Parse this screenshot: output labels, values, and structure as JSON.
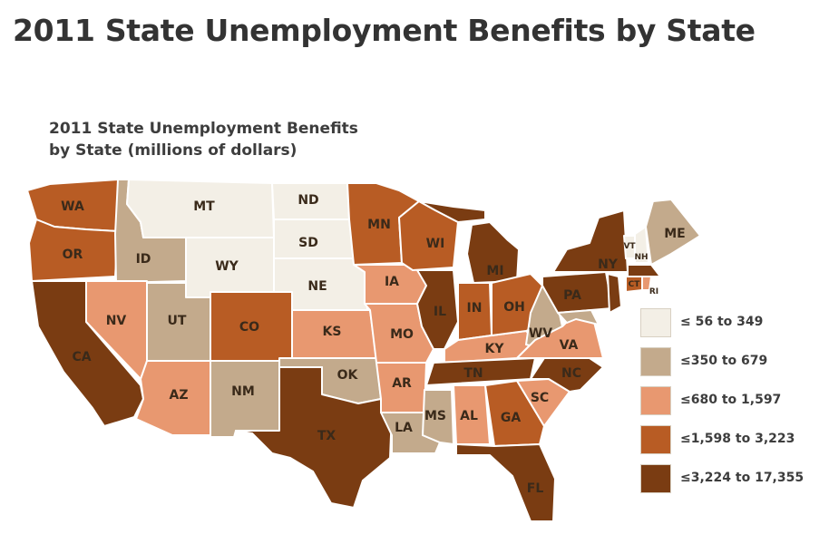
{
  "page_title": "2011 State Unemployment Benefits by State",
  "map_title": [
    "2011 State Unemployment Benefits",
    "by State (millions of dollars)"
  ],
  "colors": {
    "lightest": "#f3efe6",
    "tan": "#c3aa8c",
    "peach": "#e89870",
    "orange": "#b85c24",
    "brown": "#7a3c12"
  },
  "legend": [
    {
      "label": "≤ 56 to 349",
      "color": "#f3efe6"
    },
    {
      "label": "≤350 to 679",
      "color": "#c3aa8c"
    },
    {
      "label": "≤680 to 1,597",
      "color": "#e89870"
    },
    {
      "label": "≤1,598 to 3,223",
      "color": "#b85c24"
    },
    {
      "label": "≤3,224 to 17,355",
      "color": "#7a3c12"
    }
  ],
  "state_labels": {
    "WA": "WA",
    "OR": "OR",
    "CA": "CA",
    "ID": "ID",
    "NV": "NV",
    "MT": "MT",
    "WY": "WY",
    "UT": "UT",
    "AZ": "AZ",
    "CO": "CO",
    "NM": "NM",
    "ND": "ND",
    "SD": "SD",
    "NE": "NE",
    "KS": "KS",
    "OK": "OK",
    "TX": "TX",
    "MN": "MN",
    "IA": "IA",
    "MO": "MO",
    "AR": "AR",
    "LA": "LA",
    "WI": "WI",
    "IL": "IL",
    "MS": "MS",
    "MI": "MI",
    "IN": "IN",
    "KY": "KY",
    "TN": "TN",
    "AL": "AL",
    "OH": "OH",
    "WV": "WV",
    "GA": "GA",
    "FL": "FL",
    "SC": "SC",
    "NC": "NC",
    "VA": "VA",
    "PA": "PA",
    "NY": "NY",
    "ME": "ME",
    "VT": "VT",
    "NH": "NH",
    "RI": "RI",
    "CT": "CT"
  }
}
